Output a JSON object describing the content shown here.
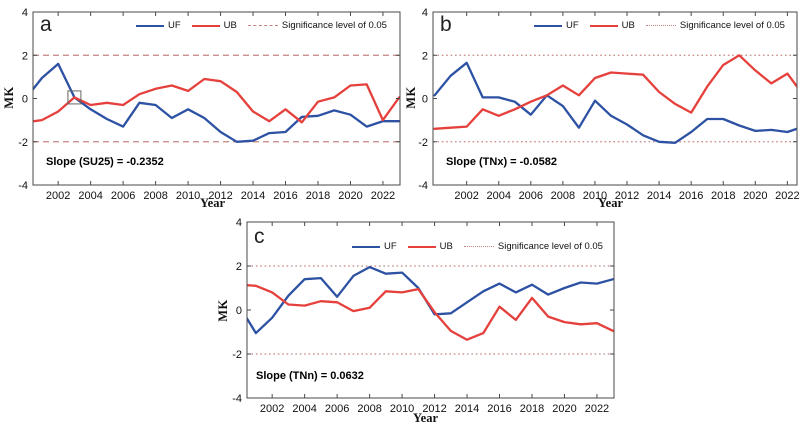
{
  "colors": {
    "uf": "#2d51a3",
    "ub": "#e5403c",
    "significance": "#c58383",
    "frame": "#4a4a4a",
    "text": "#111111"
  },
  "legend": {
    "uf": "UF",
    "ub": "UB",
    "significance": "Significance level of 0.05"
  },
  "axes": {
    "x_label": "Year",
    "y_label": "MK",
    "y_ticks": [
      4,
      2,
      0,
      -2,
      -4
    ],
    "x_ticks": [
      2002,
      2004,
      2006,
      2008,
      2010,
      2012,
      2014,
      2016,
      2018,
      2020,
      2022
    ]
  },
  "chart_data": [
    {
      "type": "line",
      "panel": "a",
      "slope_text": "Slope (SU25) = -0.2352",
      "sig_linestyle": "dashed",
      "significance_lines": [
        2,
        -2
      ],
      "ylim": [
        -4,
        4
      ],
      "x": [
        2000,
        2001,
        2002,
        2003,
        2004,
        2005,
        2006,
        2007,
        2008,
        2009,
        2010,
        2011,
        2012,
        2013,
        2014,
        2015,
        2016,
        2017,
        2018,
        2019,
        2020,
        2021,
        2022,
        2023
      ],
      "series": [
        {
          "name": "UF",
          "values": [
            0.0,
            0.95,
            1.6,
            0.05,
            -0.5,
            -0.95,
            -1.3,
            -0.2,
            -0.3,
            -0.9,
            -0.5,
            -0.9,
            -1.55,
            -2.0,
            -1.95,
            -1.6,
            -1.55,
            -0.85,
            -0.8,
            -0.55,
            -0.75,
            -1.3,
            -1.05,
            -1.05
          ]
        },
        {
          "name": "UB",
          "values": [
            -1.1,
            -1.0,
            -0.6,
            0.05,
            -0.3,
            -0.2,
            -0.3,
            0.2,
            0.45,
            0.6,
            0.35,
            0.9,
            0.8,
            0.3,
            -0.6,
            -1.05,
            -0.5,
            -1.1,
            -0.15,
            0.05,
            0.6,
            0.65,
            -1.0,
            0.05
          ]
        }
      ],
      "highlight_box": {
        "year": 2003,
        "value": 0.05
      }
    },
    {
      "type": "line",
      "panel": "b",
      "slope_text": "Slope (TNx) = -0.0582",
      "sig_linestyle": "dotted",
      "significance_lines": [
        2,
        -2
      ],
      "ylim": [
        -4,
        4
      ],
      "x": [
        2000,
        2001,
        2002,
        2003,
        2004,
        2005,
        2006,
        2007,
        2008,
        2009,
        2010,
        2011,
        2012,
        2013,
        2014,
        2015,
        2016,
        2017,
        2018,
        2019,
        2020,
        2021,
        2022,
        2023
      ],
      "series": [
        {
          "name": "UF",
          "values": [
            0.15,
            1.05,
            1.65,
            0.05,
            0.05,
            -0.15,
            -0.75,
            0.15,
            -0.35,
            -1.35,
            -0.1,
            -0.8,
            -1.2,
            -1.7,
            -2.0,
            -2.05,
            -1.55,
            -0.95,
            -0.95,
            -1.25,
            -1.5,
            -1.45,
            -1.55,
            -1.3
          ]
        },
        {
          "name": "UB",
          "values": [
            -1.4,
            -1.35,
            -1.3,
            -0.5,
            -0.8,
            -0.5,
            -0.15,
            0.15,
            0.6,
            0.15,
            0.95,
            1.2,
            1.15,
            1.1,
            0.3,
            -0.25,
            -0.65,
            0.55,
            1.55,
            2.0,
            1.3,
            0.7,
            1.15,
            0.15
          ]
        }
      ],
      "highlight_box": null
    },
    {
      "type": "line",
      "panel": "c",
      "slope_text": "Slope (TNn) = 0.0632",
      "sig_linestyle": "dotted",
      "significance_lines": [
        2,
        -2
      ],
      "ylim": [
        -4,
        4
      ],
      "x": [
        2000,
        2001,
        2002,
        2003,
        2004,
        2005,
        2006,
        2007,
        2008,
        2009,
        2010,
        2011,
        2012,
        2013,
        2014,
        2015,
        2016,
        2017,
        2018,
        2019,
        2020,
        2021,
        2022,
        2023
      ],
      "series": [
        {
          "name": "UF",
          "values": [
            0.15,
            -1.05,
            -0.35,
            0.65,
            1.4,
            1.45,
            0.6,
            1.55,
            1.95,
            1.65,
            1.7,
            1.0,
            -0.2,
            -0.15,
            0.35,
            0.85,
            1.2,
            0.8,
            1.15,
            0.7,
            1.0,
            1.25,
            1.2,
            1.4
          ]
        },
        {
          "name": "UB",
          "values": [
            1.15,
            1.1,
            0.8,
            0.25,
            0.2,
            0.4,
            0.35,
            -0.05,
            0.1,
            0.85,
            0.8,
            0.95,
            -0.1,
            -0.95,
            -1.35,
            -1.05,
            0.15,
            -0.45,
            0.55,
            -0.3,
            -0.55,
            -0.65,
            -0.6,
            -0.95
          ]
        }
      ],
      "highlight_box": null
    }
  ]
}
